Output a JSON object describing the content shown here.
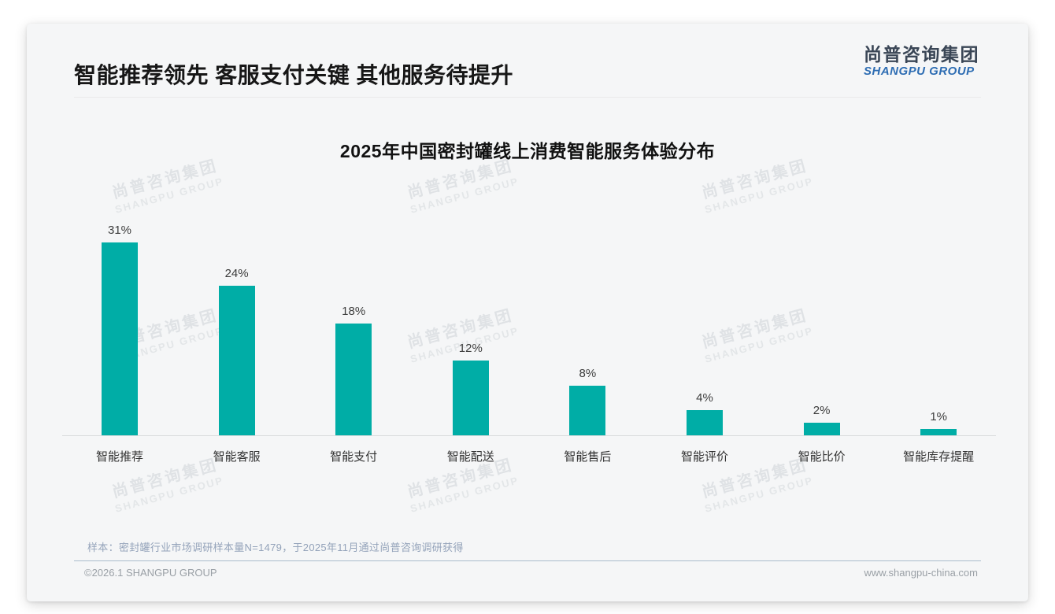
{
  "header": {
    "title": "智能推荐领先 客服支付关键 其他服务待提升"
  },
  "logo": {
    "cn": "尚普咨询集团",
    "en": "SHANGPU GROUP"
  },
  "watermark": {
    "cn": "尚普咨询集团",
    "en": "SHANGPU GROUP"
  },
  "chart_data": {
    "type": "bar",
    "title": "2025年中国密封罐线上消费智能服务体验分布",
    "categories": [
      "智能推荐",
      "智能客服",
      "智能支付",
      "智能配送",
      "智能售后",
      "智能评价",
      "智能比价",
      "智能库存提醒"
    ],
    "values": [
      31,
      24,
      18,
      12,
      8,
      4,
      2,
      1
    ],
    "value_labels": [
      "31%",
      "24%",
      "18%",
      "12%",
      "8%",
      "4%",
      "2%",
      "1%"
    ],
    "unit": "%",
    "bar_color": "#00ada6",
    "ylim": [
      0,
      35
    ],
    "grid": false,
    "legend": "none",
    "xlabel": "",
    "ylabel": ""
  },
  "footnote": "样本：密封罐行业市场调研样本量N=1479，于2025年11月通过尚普咨询调研获得",
  "footer": {
    "left": "©2026.1 SHANGPU GROUP",
    "right": "www.shangpu-china.com"
  },
  "colors": {
    "accent_teal": "#00ada6",
    "logo_blue": "#2e6db3",
    "logo_dark": "#3a4656",
    "slide_bg": "#f5f6f7",
    "divider_blue": "#aabccd"
  }
}
